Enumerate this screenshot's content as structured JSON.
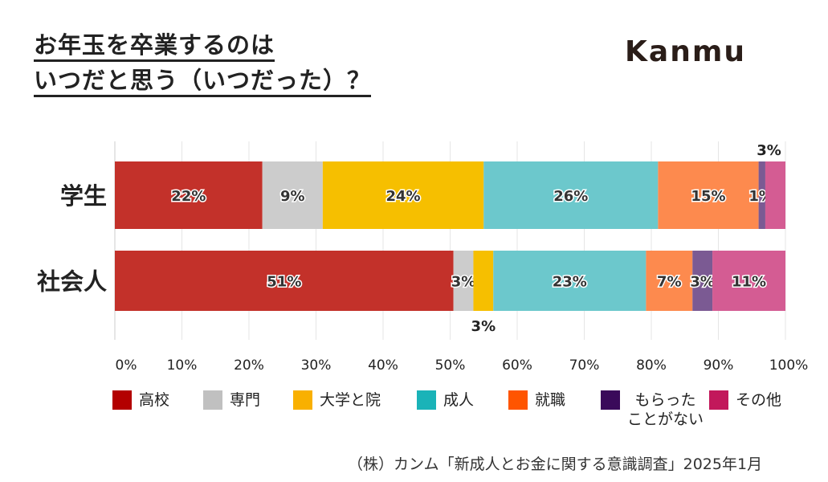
{
  "title_lines": [
    "お年玉を卒業するのは",
    "いつだと思う（いつだった）？"
  ],
  "logo": "Kanmu",
  "source": "（株）カンム「新成人とお金に関する意識調査」2025年1月",
  "chart_data": {
    "type": "bar",
    "orientation": "horizontal",
    "stacked": true,
    "title": "",
    "xlabel": "",
    "ylabel": "",
    "categories": [
      "学生",
      "社会人"
    ],
    "xlim": [
      0,
      100
    ],
    "x_ticks": [
      "0%",
      "10%",
      "20%",
      "30%",
      "40%",
      "50%",
      "60%",
      "70%",
      "80%",
      "90%",
      "100%"
    ],
    "grid": true,
    "legend_position": "bottom",
    "series": [
      {
        "name": "高校",
        "values": [
          22,
          51
        ],
        "color": "#c3312a",
        "legend_color": "#b30000"
      },
      {
        "name": "専門",
        "values": [
          9,
          3
        ],
        "color": "#cccccc",
        "legend_color": "#c0c0c0"
      },
      {
        "name": "大学と院",
        "values": [
          24,
          3
        ],
        "color": "#f6bf00",
        "legend_color": "#f9b000"
      },
      {
        "name": "成人",
        "values": [
          26,
          23
        ],
        "color": "#6cc8cc",
        "legend_color": "#1ab3b8"
      },
      {
        "name": "就職",
        "values": [
          15,
          7
        ],
        "color": "#fd8a4e",
        "legend_color": "#ff5500"
      },
      {
        "name": "もらった\nことがない",
        "values": [
          1,
          3
        ],
        "color": "#7b5a93",
        "legend_color": "#3a0a5a"
      },
      {
        "name": "その他",
        "values": [
          3,
          11
        ],
        "color": "#d45c93",
        "legend_color": "#c2185b"
      }
    ],
    "data_labels": [
      [
        "22%",
        "9%",
        "24%",
        "26%",
        "15%",
        "1%",
        "3%"
      ],
      [
        "51%",
        "3%",
        "3%",
        "23%",
        "7%",
        "3%",
        "11%"
      ]
    ]
  }
}
